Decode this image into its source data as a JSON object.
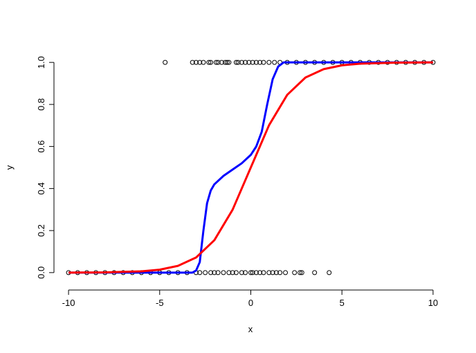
{
  "chart_data": {
    "type": "scatter",
    "xlabel": "x",
    "ylabel": "y",
    "xlim": [
      -10.8,
      10.8
    ],
    "ylim": [
      -0.04,
      1.04
    ],
    "xticks": [
      -10,
      -5,
      0,
      5,
      10
    ],
    "yticks": [
      {
        "value": 0,
        "label": "0.0"
      },
      0.2,
      0.4,
      0.6,
      0.8,
      {
        "value": 1,
        "label": "1.0"
      }
    ],
    "series": [
      {
        "type": "scatter",
        "color": "#000000",
        "x": [
          -10,
          -9.5,
          -9,
          -8.5,
          -8,
          -7.5,
          -7,
          -6.5,
          -6,
          -5.5,
          -5,
          -4.5,
          -4,
          -3.5,
          -3,
          -2.8,
          -2.5,
          -2.2,
          -2,
          -1.8,
          -1.5,
          -1.2,
          -1,
          -0.8,
          -0.5,
          -0.3,
          0,
          0.1,
          0.3,
          0.5,
          0.7,
          1,
          1.2,
          1.4,
          1.6,
          1.9,
          2.4,
          2.7,
          2.8,
          3.5,
          4.3,
          -4.7,
          -3.2,
          -3,
          -2.8,
          -2.6,
          -2.3,
          -2.2,
          -1.9,
          -1.8,
          -1.6,
          -1.4,
          -1.3,
          -1.2,
          -0.8,
          -0.7,
          -0.5,
          -0.3,
          -0.1,
          0.1,
          0.3,
          0.5,
          0.7,
          1,
          1.3,
          1.6,
          2,
          2.5,
          3,
          3.5,
          4,
          4.5,
          5,
          5.5,
          6,
          6.5,
          7,
          7.5,
          8,
          8.5,
          9,
          9.5,
          10
        ],
        "y": [
          0,
          0,
          0,
          0,
          0,
          0,
          0,
          0,
          0,
          0,
          0,
          0,
          0,
          0,
          0,
          0,
          0,
          0,
          0,
          0,
          0,
          0,
          0,
          0,
          0,
          0,
          0,
          0,
          0,
          0,
          0,
          0,
          0,
          0,
          0,
          0,
          0,
          0,
          0,
          0,
          0,
          1,
          1,
          1,
          1,
          1,
          1,
          1,
          1,
          1,
          1,
          1,
          1,
          1,
          1,
          1,
          1,
          1,
          1,
          1,
          1,
          1,
          1,
          1,
          1,
          1,
          1,
          1,
          1,
          1,
          1,
          1,
          1,
          1,
          1,
          1,
          1,
          1,
          1,
          1,
          1,
          1,
          1
        ]
      },
      {
        "type": "line",
        "color": "#0000ff",
        "x": [
          -10,
          -5,
          -3.2,
          -3,
          -2.8,
          -2.6,
          -2.4,
          -2.2,
          -2,
          -1.5,
          -1,
          -0.5,
          0,
          0.3,
          0.6,
          0.9,
          1.2,
          1.5,
          1.8,
          10
        ],
        "y": [
          0,
          0,
          0,
          0.01,
          0.05,
          0.2,
          0.33,
          0.39,
          0.42,
          0.46,
          0.49,
          0.52,
          0.56,
          0.6,
          0.67,
          0.8,
          0.92,
          0.98,
          1,
          1
        ]
      },
      {
        "type": "line",
        "color": "#ff0000",
        "x": [
          -10,
          -8,
          -6,
          -5,
          -4,
          -3,
          -2,
          -1,
          0,
          1,
          2,
          3,
          4,
          5,
          6,
          8,
          10
        ],
        "y": [
          0,
          0.001,
          0.006,
          0.014,
          0.032,
          0.072,
          0.154,
          0.299,
          0.5,
          0.701,
          0.846,
          0.928,
          0.968,
          0.986,
          0.994,
          0.999,
          1
        ]
      }
    ]
  }
}
